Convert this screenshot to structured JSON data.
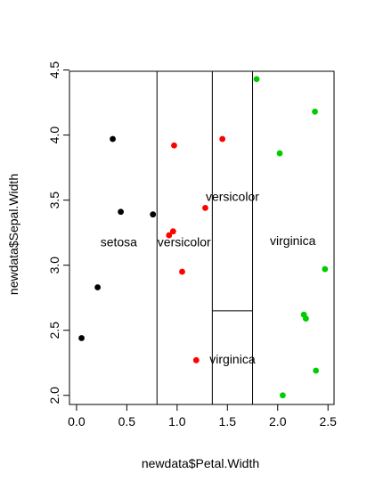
{
  "chart_data": {
    "type": "scatter",
    "title": "",
    "xlabel": "newdata$Petal.Width",
    "ylabel": "newdata$Sepal.Width",
    "xlim": [
      -0.07,
      2.56
    ],
    "ylim": [
      1.93,
      4.49
    ],
    "grid": false,
    "legend": "none",
    "x_ticks": [
      0.0,
      0.5,
      1.0,
      1.5,
      2.0,
      2.5
    ],
    "x_tick_labels": [
      "0.0",
      "0.5",
      "1.0",
      "1.5",
      "2.0",
      "2.5"
    ],
    "y_ticks": [
      2.0,
      2.5,
      3.0,
      3.5,
      4.0,
      4.5
    ],
    "y_tick_labels": [
      "2.0",
      "2.5",
      "3.0",
      "3.5",
      "4.0",
      "4.5"
    ],
    "colors": {
      "setosa": "#000000",
      "versicolor": "#ff0000",
      "virginica": "#00cd00"
    },
    "series": [
      {
        "class": "setosa",
        "color": "#000000",
        "points": [
          {
            "x": 0.05,
            "y": 2.44
          },
          {
            "x": 0.21,
            "y": 2.83
          },
          {
            "x": 0.36,
            "y": 3.97
          },
          {
            "x": 0.44,
            "y": 3.41
          },
          {
            "x": 0.76,
            "y": 3.39
          }
        ]
      },
      {
        "class": "versicolor",
        "color": "#ff0000",
        "points": [
          {
            "x": 0.97,
            "y": 3.92
          },
          {
            "x": 1.45,
            "y": 3.97
          },
          {
            "x": 1.28,
            "y": 3.44
          },
          {
            "x": 0.96,
            "y": 3.26
          },
          {
            "x": 0.92,
            "y": 3.23
          },
          {
            "x": 1.05,
            "y": 2.95
          },
          {
            "x": 1.19,
            "y": 2.27
          }
        ]
      },
      {
        "class": "virginica",
        "color": "#00cd00",
        "points": [
          {
            "x": 1.79,
            "y": 4.43
          },
          {
            "x": 2.37,
            "y": 4.18
          },
          {
            "x": 2.02,
            "y": 3.86
          },
          {
            "x": 2.47,
            "y": 2.97
          },
          {
            "x": 2.26,
            "y": 2.62
          },
          {
            "x": 2.28,
            "y": 2.59
          },
          {
            "x": 2.38,
            "y": 2.19
          },
          {
            "x": 2.05,
            "y": 2.0
          }
        ]
      }
    ],
    "segments": [
      {
        "x1": 0.8,
        "y1": 1.93,
        "x2": 0.8,
        "y2": 4.49
      },
      {
        "x1": 1.35,
        "y1": 1.93,
        "x2": 1.35,
        "y2": 4.49
      },
      {
        "x1": 1.75,
        "y1": 1.93,
        "x2": 1.75,
        "y2": 4.49
      },
      {
        "x1": 1.35,
        "y1": 2.65,
        "x2": 1.75,
        "y2": 2.65
      }
    ],
    "annotations": [
      {
        "text": "setosa",
        "x": 0.42,
        "y": 3.18
      },
      {
        "text": "versicolor",
        "x": 1.07,
        "y": 3.18
      },
      {
        "text": "versicolor",
        "x": 1.55,
        "y": 3.53
      },
      {
        "text": "virginica",
        "x": 2.15,
        "y": 3.19
      },
      {
        "text": "virginica",
        "x": 1.55,
        "y": 2.28
      }
    ]
  }
}
